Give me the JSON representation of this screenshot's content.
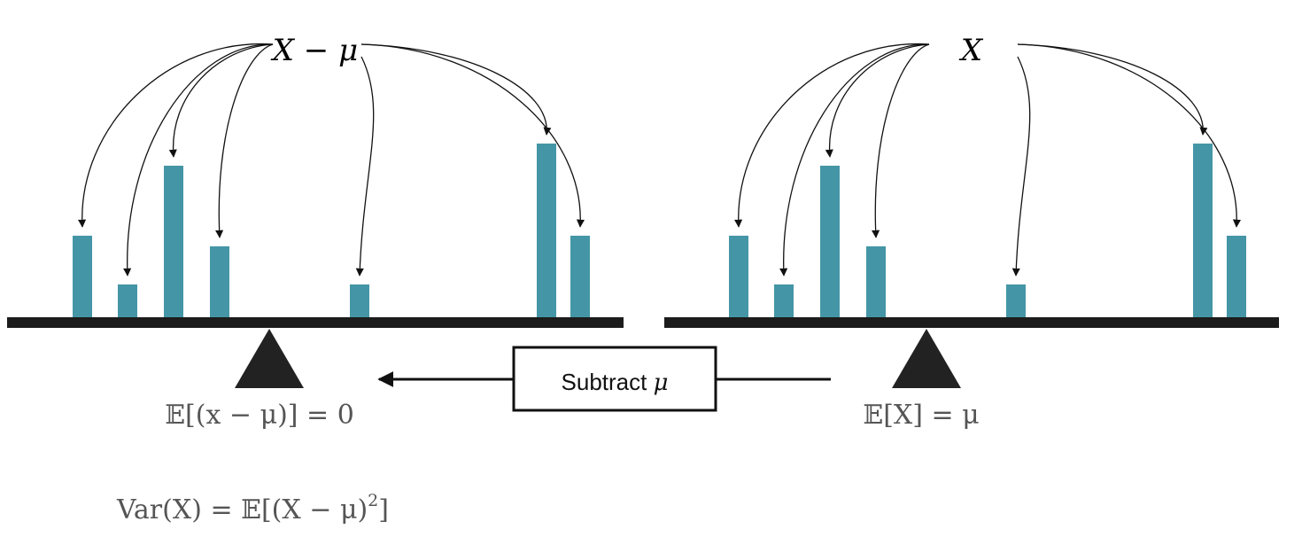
{
  "colors": {
    "bar": "#4496a6",
    "beam": "#1c1c1c",
    "fulcrum": "#222222",
    "arrow": "#111111",
    "formula_gray": "#555555",
    "label_black": "#000000"
  },
  "left_panel": {
    "top_label": "X − μ",
    "formula": "𝔼[(x − μ)] = 0",
    "bar_heights_relative": [
      0.47,
      0.19,
      0.87,
      0.41,
      0.19,
      1.0,
      0.47
    ]
  },
  "right_panel": {
    "top_label": "X",
    "formula": "𝔼[X] = μ",
    "bar_heights_relative": [
      0.47,
      0.19,
      0.87,
      0.41,
      0.19,
      1.0,
      0.47
    ]
  },
  "transform_box": {
    "label_text": "Subtract ",
    "label_symbol": "μ"
  },
  "variance": {
    "lhs": "Var(X) = 𝔼[(X − μ)",
    "exponent": "2",
    "rhs": "]"
  }
}
